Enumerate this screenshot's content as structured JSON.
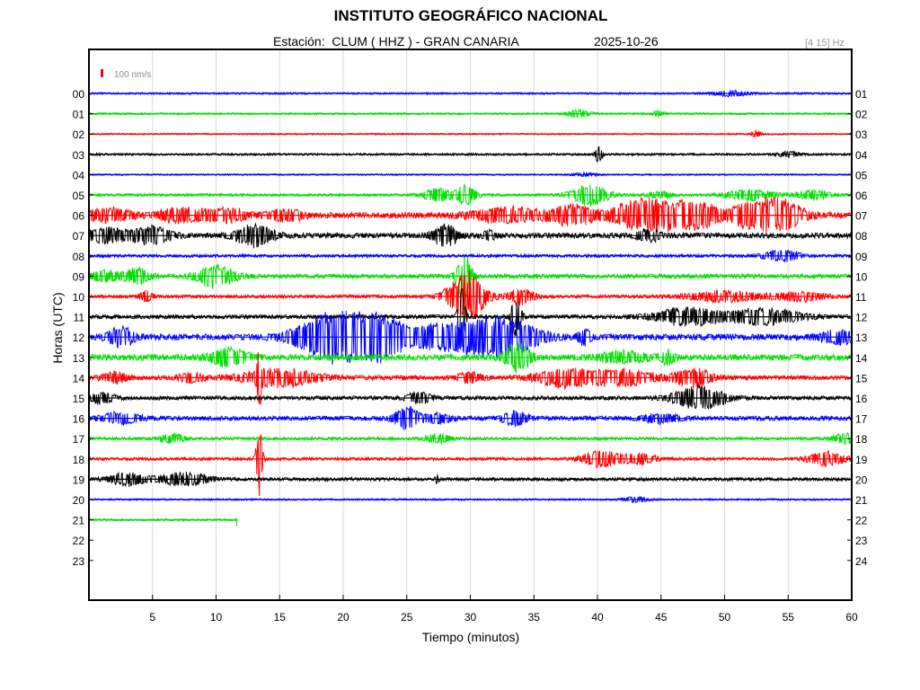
{
  "header": {
    "title": "INSTITUTO GEOGRÁFICO NACIONAL",
    "station_line": "Estación:  CLUM ( HHZ ) - GRAN CANARIA",
    "date": "2025-10-26",
    "filter": "[4 15] Hz"
  },
  "chart_data": {
    "type": "line",
    "title": "INSTITUTO GEOGRÁFICO NACIONAL",
    "xlabel": "Tiempo (minutos)",
    "ylabel": "Horas (UTC)",
    "xlim": [
      0,
      60
    ],
    "x_ticks": [
      5,
      10,
      15,
      20,
      25,
      30,
      35,
      40,
      45,
      50,
      55,
      60
    ],
    "left_hours": [
      "00",
      "01",
      "02",
      "03",
      "04",
      "05",
      "06",
      "07",
      "08",
      "09",
      "10",
      "11",
      "12",
      "13",
      "14",
      "15",
      "16",
      "17",
      "18",
      "19",
      "20",
      "21",
      "22",
      "23"
    ],
    "right_hours": [
      "01",
      "02",
      "03",
      "04",
      "05",
      "06",
      "07",
      "08",
      "09",
      "10",
      "11",
      "12",
      "13",
      "14",
      "15",
      "16",
      "17",
      "18",
      "19",
      "20",
      "21",
      "22",
      "23",
      "24"
    ],
    "scale_bar": "100 nm/s",
    "grid": true,
    "trace_colors": [
      "#0000ff",
      "#00dd00",
      "#ff0000",
      "#000000"
    ],
    "traces": [
      {
        "hour": "00",
        "color_index": 0,
        "base_amp": 1.0,
        "end_min": 60,
        "events": [
          [
            50.5,
            3,
            1.5
          ]
        ]
      },
      {
        "hour": "01",
        "color_index": 1,
        "base_amp": 1.0,
        "end_min": 60,
        "events": [
          [
            38.5,
            4,
            1
          ],
          [
            44.8,
            3,
            0.5
          ]
        ]
      },
      {
        "hour": "02",
        "color_index": 2,
        "base_amp": 0.8,
        "end_min": 60,
        "events": [
          [
            52.5,
            4,
            0.4
          ]
        ]
      },
      {
        "hour": "03",
        "color_index": 3,
        "base_amp": 1.2,
        "end_min": 60,
        "events": [
          [
            40.1,
            9,
            0.3
          ],
          [
            55,
            3,
            1
          ]
        ]
      },
      {
        "hour": "04",
        "color_index": 0,
        "base_amp": 0.8,
        "end_min": 60,
        "events": [
          [
            39,
            2,
            1
          ]
        ]
      },
      {
        "hour": "05",
        "color_index": 1,
        "base_amp": 1.4,
        "end_min": 60,
        "events": [
          [
            27.5,
            7,
            1.2
          ],
          [
            29.7,
            12,
            0.8
          ],
          [
            39.4,
            12,
            1.5
          ],
          [
            45,
            4,
            1
          ],
          [
            52,
            6,
            2
          ],
          [
            57,
            5,
            1.5
          ]
        ]
      },
      {
        "hour": "06",
        "color_index": 2,
        "base_amp": 3.0,
        "end_min": 60,
        "events": [
          [
            1.5,
            7,
            2
          ],
          [
            7,
            8,
            1.5
          ],
          [
            10.5,
            8,
            2
          ],
          [
            15.5,
            6,
            1.5
          ],
          [
            33,
            8,
            3
          ],
          [
            38,
            12,
            1.5
          ],
          [
            44,
            18,
            3
          ],
          [
            48,
            12,
            2
          ],
          [
            51.5,
            10,
            1
          ],
          [
            54,
            20,
            2
          ]
        ]
      },
      {
        "hour": "07",
        "color_index": 3,
        "base_amp": 2.8,
        "end_min": 60,
        "events": [
          [
            1.5,
            8,
            2
          ],
          [
            5,
            9,
            1.5
          ],
          [
            13,
            12,
            1.5
          ],
          [
            28,
            12,
            1
          ],
          [
            31.5,
            5,
            0.5
          ],
          [
            44,
            6,
            1
          ]
        ]
      },
      {
        "hour": "08",
        "color_index": 0,
        "base_amp": 1.6,
        "end_min": 60,
        "events": [
          [
            54.5,
            6,
            1.5
          ]
        ]
      },
      {
        "hour": "09",
        "color_index": 1,
        "base_amp": 2.4,
        "end_min": 60,
        "events": [
          [
            1.2,
            6,
            1.5
          ],
          [
            3.8,
            8,
            1
          ],
          [
            10,
            13,
            1.5
          ],
          [
            29.5,
            24,
            0.6
          ]
        ]
      },
      {
        "hour": "10",
        "color_index": 2,
        "base_amp": 1.8,
        "end_min": 60,
        "events": [
          [
            4.5,
            6,
            0.5
          ],
          [
            29.7,
            28,
            1.5
          ],
          [
            34,
            9,
            1
          ],
          [
            50,
            6,
            3
          ],
          [
            56,
            5,
            2
          ]
        ]
      },
      {
        "hour": "11",
        "color_index": 3,
        "base_amp": 2.2,
        "end_min": 60,
        "events": [
          [
            29.3,
            32,
            0.3
          ],
          [
            33.6,
            24,
            0.4
          ],
          [
            47,
            10,
            2.5
          ],
          [
            53,
            9,
            3
          ]
        ]
      },
      {
        "hour": "12",
        "color_index": 0,
        "base_amp": 3.2,
        "end_min": 60,
        "events": [
          [
            2.5,
            11,
            1
          ],
          [
            18.5,
            16,
            2.5
          ],
          [
            21,
            18,
            3.5
          ],
          [
            23,
            14,
            2
          ],
          [
            27,
            8,
            2
          ],
          [
            30,
            14,
            3
          ],
          [
            33,
            16,
            2.5
          ],
          [
            39,
            9,
            0.5
          ],
          [
            59,
            7,
            1.5
          ]
        ]
      },
      {
        "hour": "13",
        "color_index": 1,
        "base_amp": 3.2,
        "end_min": 60,
        "events": [
          [
            11,
            10,
            1.5
          ],
          [
            33.7,
            16,
            1
          ],
          [
            42,
            6,
            2
          ],
          [
            45.5,
            8,
            0.5
          ]
        ]
      },
      {
        "hour": "14",
        "color_index": 2,
        "base_amp": 2.4,
        "end_min": 60,
        "events": [
          [
            2,
            6,
            1
          ],
          [
            8,
            5,
            1
          ],
          [
            15,
            10,
            3
          ],
          [
            30,
            6,
            1
          ],
          [
            37.5,
            10,
            2.5
          ],
          [
            42,
            9,
            2.5
          ],
          [
            47.5,
            10,
            1.5
          ],
          [
            13.4,
            28,
            0.2
          ]
        ]
      },
      {
        "hour": "15",
        "color_index": 3,
        "base_amp": 2.2,
        "end_min": 60,
        "events": [
          [
            1,
            6,
            1
          ],
          [
            26,
            6,
            1
          ],
          [
            48,
            13,
            2
          ]
        ]
      },
      {
        "hour": "16",
        "color_index": 0,
        "base_amp": 2.4,
        "end_min": 60,
        "events": [
          [
            2.5,
            6,
            1.5
          ],
          [
            25,
            13,
            1
          ],
          [
            27.5,
            6,
            1
          ],
          [
            33.5,
            8,
            1
          ],
          [
            45,
            5,
            1.5
          ]
        ]
      },
      {
        "hour": "17",
        "color_index": 1,
        "base_amp": 1.6,
        "end_min": 60,
        "events": [
          [
            6.5,
            5,
            1
          ],
          [
            27.5,
            5,
            1
          ],
          [
            59.5,
            6,
            1
          ]
        ]
      },
      {
        "hour": "18",
        "color_index": 2,
        "base_amp": 1.6,
        "end_min": 60,
        "events": [
          [
            13.4,
            45,
            0.25
          ],
          [
            40.2,
            9,
            1.5
          ],
          [
            43.2,
            6,
            1.5
          ],
          [
            58,
            8,
            1.5
          ]
        ]
      },
      {
        "hour": "19",
        "color_index": 3,
        "base_amp": 1.8,
        "end_min": 60,
        "events": [
          [
            3,
            7,
            1.5
          ],
          [
            7.5,
            7,
            2
          ],
          [
            27.4,
            5,
            0.15
          ]
        ]
      },
      {
        "hour": "20",
        "color_index": 0,
        "base_amp": 1.0,
        "end_min": 60,
        "events": [
          [
            43,
            3,
            1
          ]
        ]
      },
      {
        "hour": "21",
        "color_index": 1,
        "base_amp": 1.0,
        "end_min": 11.7,
        "events": [
          [
            11.7,
            8,
            0.1
          ]
        ]
      }
    ]
  }
}
